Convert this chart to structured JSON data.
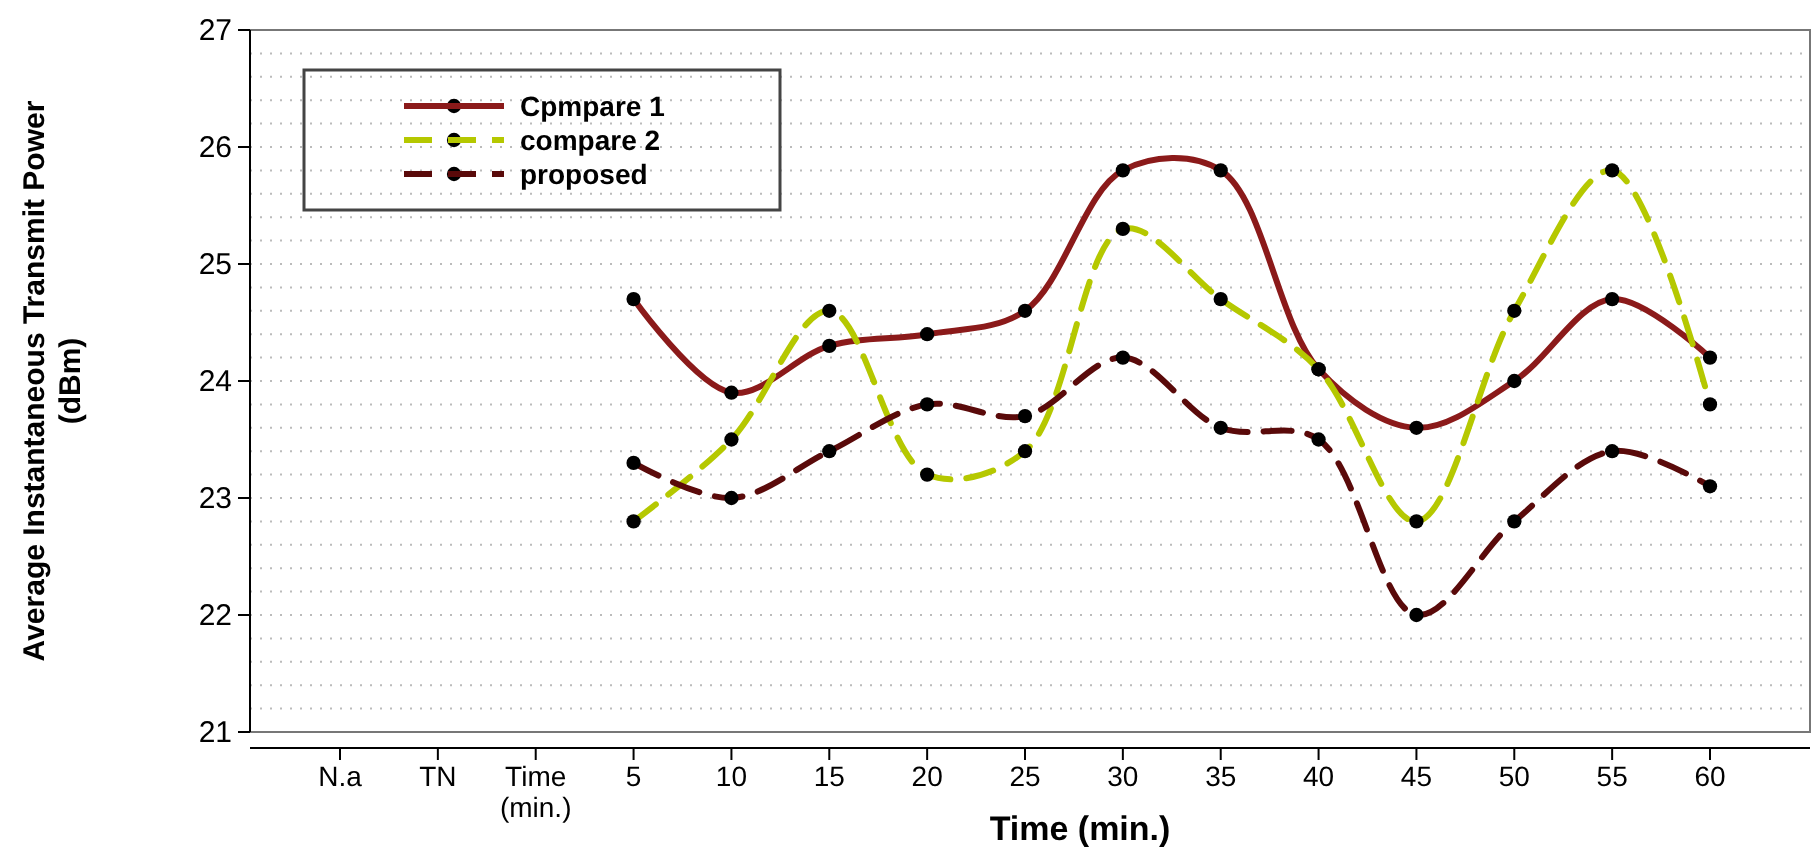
{
  "chart_data": {
    "type": "line",
    "xlabel": "Time (min.)",
    "ylabel": "Average Instantaneous Transmit Power\n(dBm)",
    "categories": [
      "N.a",
      "TN",
      "Time (min.)",
      "5",
      "10",
      "15",
      "20",
      "25",
      "30",
      "35",
      "40",
      "45",
      "50",
      "55",
      "60"
    ],
    "series": [
      {
        "name": "Cpmpare 1",
        "color": "#8b1a1a",
        "line_style": "solid",
        "values": [
          null,
          null,
          null,
          24.7,
          23.9,
          24.3,
          24.4,
          24.6,
          25.8,
          25.8,
          24.1,
          23.6,
          24.0,
          24.7,
          24.2
        ]
      },
      {
        "name": "compare 2",
        "color": "#b5c800",
        "line_style": "dashed",
        "values": [
          null,
          null,
          null,
          22.8,
          23.5,
          24.6,
          23.2,
          23.4,
          25.3,
          24.7,
          24.1,
          22.8,
          24.6,
          25.8,
          23.8
        ]
      },
      {
        "name": "proposed",
        "color": "#5a0a0a",
        "line_style": "dashed",
        "values": [
          null,
          null,
          null,
          23.3,
          23.0,
          23.4,
          23.8,
          23.7,
          24.2,
          23.6,
          23.5,
          22.0,
          22.8,
          23.4,
          23.1
        ]
      }
    ],
    "ylim": [
      21,
      27
    ],
    "yticks": [
      21,
      22,
      23,
      24,
      25,
      26,
      27
    ],
    "grid": "y",
    "legend": "top left",
    "marker": "circle"
  }
}
